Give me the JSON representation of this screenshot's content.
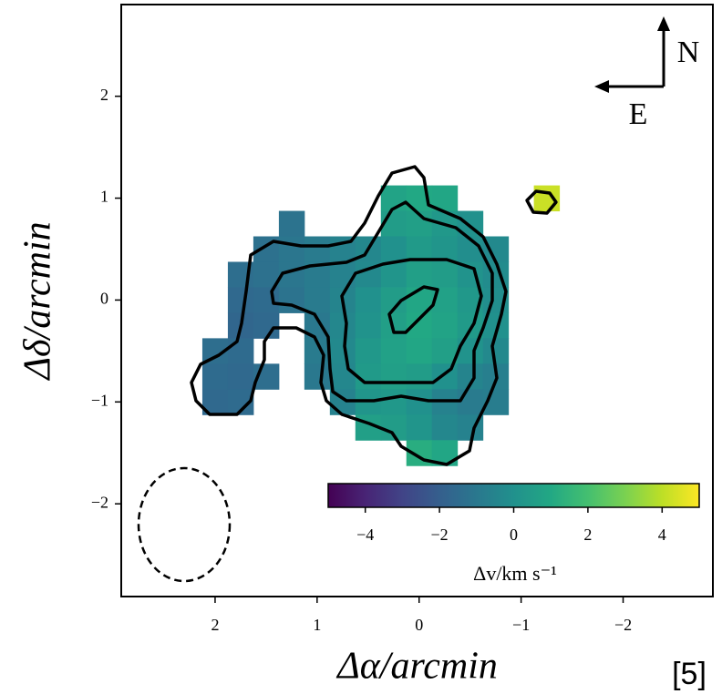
{
  "chart_data": {
    "type": "heatmap",
    "x_label": "Δα/arcmin",
    "y_label": "Δδ/arcmin",
    "xlim": [
      2.92,
      -2.88
    ],
    "ylim": [
      -2.91,
      2.9
    ],
    "xticks": [
      2,
      1,
      0,
      {
        "value": -1,
        "label": "−1"
      },
      {
        "value": -2,
        "label": "−2"
      }
    ],
    "yticks": [
      {
        "value": -2,
        "label": "−2"
      },
      {
        "value": -1,
        "label": "−1"
      },
      0,
      1,
      2
    ],
    "colormap": "viridis",
    "x": [
      2.0,
      1.75,
      1.5,
      1.25,
      1.0,
      0.75,
      0.5,
      0.25,
      0,
      -0.25,
      -0.5,
      -0.75,
      -1.0,
      -1.25
    ],
    "y": [
      1.0,
      0.75,
      0.5,
      0.25,
      0,
      -0.25,
      -0.5,
      -0.75,
      -1.0,
      -1.25,
      -1.5
    ],
    "z": [
      [
        null,
        null,
        null,
        null,
        null,
        null,
        null,
        0.8,
        1.0,
        0.9,
        null,
        null,
        null,
        4.2
      ],
      [
        null,
        null,
        null,
        -1.2,
        null,
        null,
        null,
        0.5,
        0.6,
        0.3,
        0.0,
        null,
        null,
        null
      ],
      [
        null,
        null,
        -1.3,
        -1.1,
        -0.9,
        -0.6,
        -0.4,
        0.0,
        0.4,
        0.2,
        -0.1,
        -0.3,
        null,
        null
      ],
      [
        null,
        -1.4,
        -1.3,
        -1.1,
        -0.9,
        -0.6,
        -0.3,
        0.2,
        0.6,
        0.5,
        0.1,
        -0.2,
        null,
        null
      ],
      [
        null,
        -1.6,
        -1.5,
        -1.2,
        -0.9,
        -0.5,
        0.0,
        0.5,
        0.9,
        0.7,
        0.3,
        -0.1,
        null,
        null
      ],
      [
        null,
        -1.7,
        -1.6,
        null,
        -1.0,
        -0.4,
        0.1,
        0.6,
        1.0,
        0.8,
        0.4,
        0.0,
        null,
        null
      ],
      [
        -1.4,
        -1.5,
        null,
        null,
        -0.9,
        -0.3,
        0.3,
        0.7,
        0.9,
        0.6,
        0.1,
        -0.3,
        null,
        null
      ],
      [
        -1.5,
        -1.6,
        -1.4,
        null,
        -1.0,
        -0.4,
        0.4,
        0.6,
        0.5,
        0.0,
        -0.5,
        -0.7,
        null,
        null
      ],
      [
        -1.6,
        -1.5,
        null,
        null,
        null,
        -0.6,
        0.2,
        0.3,
        0.0,
        -0.6,
        -0.9,
        -0.8,
        null,
        null
      ],
      [
        null,
        null,
        null,
        null,
        null,
        null,
        0.6,
        0.5,
        0.2,
        -0.4,
        -0.6,
        null,
        null,
        null
      ],
      [
        null,
        null,
        null,
        null,
        null,
        null,
        null,
        null,
        1.2,
        0.9,
        null,
        null,
        null,
        null
      ]
    ],
    "colorbar": {
      "label": "Δv/km s⁻¹",
      "clim": [
        -5,
        5
      ],
      "ticks": [
        {
          "value": -4,
          "label": "−4"
        },
        {
          "value": -2,
          "label": "−2"
        },
        0,
        2,
        4
      ]
    },
    "compass": {
      "north": "N",
      "east": "E"
    },
    "citation": "[5]"
  }
}
